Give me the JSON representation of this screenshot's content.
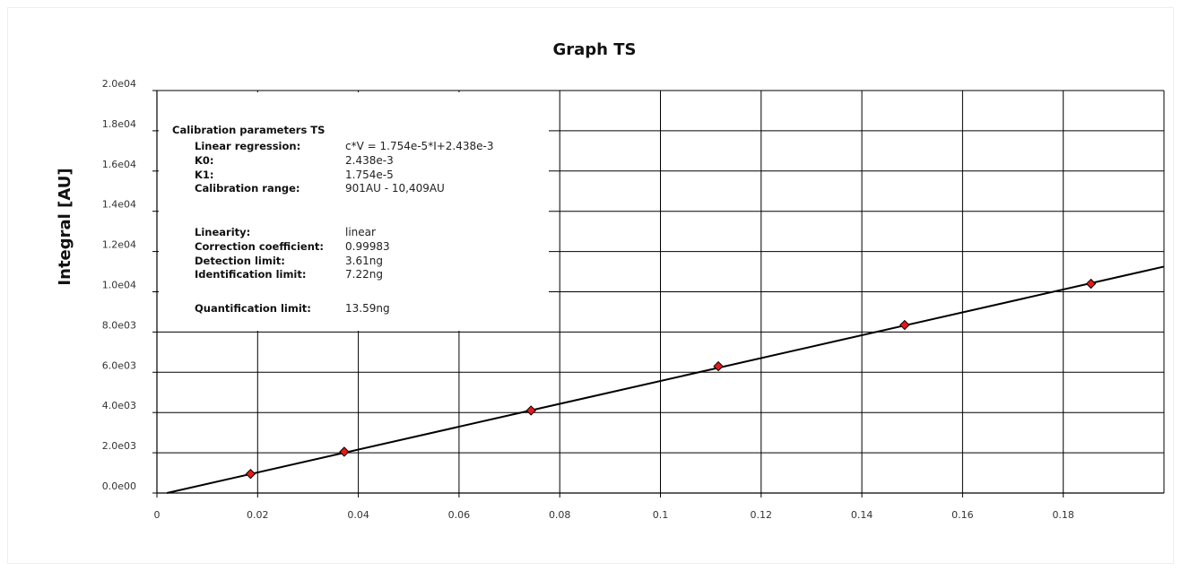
{
  "chart_data": {
    "type": "scatter",
    "title": "Graph TS",
    "xlabel": "",
    "ylabel": "Integral [AU]",
    "xlim": [
      0,
      0.2
    ],
    "ylim": [
      0,
      20000
    ],
    "x_ticks": [
      "0",
      "0.02",
      "0.04",
      "0.06",
      "0.08",
      "0.1",
      "0.12",
      "0.14",
      "0.16",
      "0.18"
    ],
    "y_ticks": [
      "0.0e00",
      "2.0e03",
      "4.0e03",
      "6.0e03",
      "8.0e03",
      "1.0e04",
      "1.2e04",
      "1.4e04",
      "1.6e04",
      "1.8e04",
      "2.0e04"
    ],
    "grid": true,
    "legend": "none",
    "series": [
      {
        "points": [
          {
            "x": 0.0186,
            "y": 950
          },
          {
            "x": 0.0372,
            "y": 2050
          },
          {
            "x": 0.0743,
            "y": 4100
          },
          {
            "x": 0.1115,
            "y": 6300
          },
          {
            "x": 0.1485,
            "y": 8350
          },
          {
            "x": 0.1855,
            "y": 10400
          }
        ],
        "marker_color": "#e31a1c",
        "marker": "diamond"
      }
    ],
    "regression_line": {
      "x": [
        0.002,
        0.2
      ],
      "y": [
        0,
        11250
      ],
      "color": "#000000"
    },
    "info_box": {
      "title": "Calibration parameters TS",
      "rows": [
        {
          "label": "Linear regression:",
          "value": "c*V = 1.754e-5*I+2.438e-3"
        },
        {
          "label": "K0:",
          "value": "2.438e-3"
        },
        {
          "label": "K1:",
          "value": "1.754e-5"
        },
        {
          "label": "Calibration range:",
          "value": "901AU - 10,409AU"
        },
        {
          "label": "Linearity:",
          "value": "linear"
        },
        {
          "label": "Correction coefficient:",
          "value": "0.99983"
        },
        {
          "label": "Detection limit:",
          "value": "3.61ng"
        },
        {
          "label": "Identification limit:",
          "value": "7.22ng"
        },
        {
          "label": "Quantification limit:",
          "value": "13.59ng"
        }
      ]
    }
  }
}
